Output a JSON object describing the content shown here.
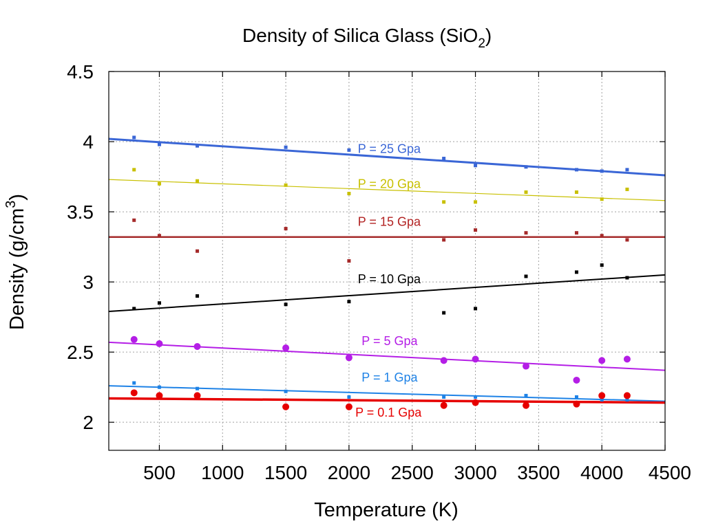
{
  "chart_data": {
    "type": "scatter",
    "title": "Density of Silica Glass (SiO",
    "title_subscript": "2",
    "title_close": ")",
    "xlabel": "Temperature (K)",
    "ylabel": "Density (g/cm",
    "ylabel_superscript": "3",
    "ylabel_close": ")",
    "xlim": [
      100,
      4500
    ],
    "ylim": [
      1.8,
      4.5
    ],
    "xticks": [
      500,
      1000,
      1500,
      2000,
      2500,
      3000,
      3500,
      4000,
      4500
    ],
    "xtick_labels": [
      "500",
      "1000",
      "1500",
      "2000",
      "2500",
      "3000",
      "3500",
      "4000",
      "4500"
    ],
    "yticks": [
      2,
      2.5,
      3,
      3.5,
      4,
      4.5
    ],
    "ytick_labels": [
      "2",
      "2.5",
      "3",
      "3.5",
      "4",
      "4.5"
    ],
    "grid": true,
    "legend": "none",
    "series": [
      {
        "name": "P = 25 Gpa",
        "color": "#3a66d6",
        "marker": "square",
        "x": [
          300,
          500,
          800,
          1500,
          2000,
          2750,
          3000,
          3400,
          3800,
          4000,
          4200
        ],
        "y": [
          4.03,
          3.98,
          3.97,
          3.96,
          3.94,
          3.88,
          3.83,
          3.82,
          3.8,
          3.79,
          3.8
        ],
        "fit": [
          [
            100,
            4.02
          ],
          [
            4500,
            3.76
          ]
        ],
        "fit_width": 3
      },
      {
        "name": "P = 20 Gpa",
        "color": "#c8c000",
        "marker": "square",
        "x": [
          300,
          500,
          800,
          1500,
          2000,
          2750,
          3000,
          3400,
          3800,
          4000,
          4200
        ],
        "y": [
          3.8,
          3.7,
          3.72,
          3.69,
          3.63,
          3.57,
          3.57,
          3.64,
          3.64,
          3.59,
          3.66
        ],
        "fit": [
          [
            100,
            3.73
          ],
          [
            4500,
            3.58
          ]
        ],
        "fit_width": 1.2
      },
      {
        "name": "P = 15 Gpa",
        "color": "#a52a2a",
        "marker": "square",
        "x": [
          300,
          500,
          800,
          1500,
          2000,
          2750,
          3000,
          3400,
          3800,
          4000,
          4200
        ],
        "y": [
          3.44,
          3.33,
          3.22,
          3.38,
          3.15,
          3.3,
          3.37,
          3.35,
          3.35,
          3.33,
          3.3
        ],
        "fit": [
          [
            100,
            3.32
          ],
          [
            4500,
            3.32
          ]
        ],
        "fit_width": 2.5
      },
      {
        "name": "P = 10 Gpa",
        "color": "#000000",
        "marker": "square",
        "x": [
          300,
          500,
          800,
          1500,
          2000,
          2750,
          3000,
          3400,
          3800,
          4000,
          4200
        ],
        "y": [
          2.81,
          2.85,
          2.9,
          2.84,
          2.86,
          2.78,
          2.81,
          3.04,
          3.07,
          3.12,
          3.03
        ],
        "fit": [
          [
            100,
            2.79
          ],
          [
            4500,
            3.05
          ]
        ],
        "fit_width": 2
      },
      {
        "name": "P = 5 Gpa",
        "color": "#b41ee6",
        "marker": "circle",
        "x": [
          300,
          500,
          800,
          1500,
          2000,
          2750,
          3000,
          3400,
          3800,
          4000,
          4200
        ],
        "y": [
          2.59,
          2.56,
          2.54,
          2.53,
          2.46,
          2.44,
          2.45,
          2.4,
          2.3,
          2.44,
          2.45
        ],
        "fit": [
          [
            100,
            2.57
          ],
          [
            4500,
            2.37
          ]
        ],
        "fit_width": 2
      },
      {
        "name": "P = 1 Gpa",
        "color": "#1e82e6",
        "marker": "square",
        "x": [
          300,
          500,
          800,
          1500,
          2000,
          2750,
          3000,
          3400,
          3800,
          4000,
          4200
        ],
        "y": [
          2.28,
          2.25,
          2.24,
          2.22,
          2.18,
          2.18,
          2.18,
          2.19,
          2.18,
          2.16,
          2.16
        ],
        "fit": [
          [
            100,
            2.26
          ],
          [
            4500,
            2.15
          ]
        ],
        "fit_width": 2
      },
      {
        "name": "P = 0.1 Gpa",
        "color": "#e60000",
        "marker": "circle",
        "x": [
          300,
          500,
          800,
          1500,
          2000,
          2750,
          3000,
          3400,
          3800,
          4000,
          4200
        ],
        "y": [
          2.21,
          2.19,
          2.19,
          2.11,
          2.11,
          2.12,
          2.14,
          2.12,
          2.13,
          2.19,
          2.19
        ],
        "fit": [
          [
            100,
            2.17
          ],
          [
            4500,
            2.14
          ]
        ],
        "fit_width": 3.5
      }
    ],
    "annotations": [
      {
        "text": "P = 25 Gpa",
        "x": 2070,
        "y": 3.92,
        "color": "#3a66d6"
      },
      {
        "text": "P = 20 Gpa",
        "x": 2070,
        "y": 3.67,
        "color": "#c8c000"
      },
      {
        "text": "P = 15 Gpa",
        "x": 2070,
        "y": 3.4,
        "color": "#b22222"
      },
      {
        "text": "P = 10 Gpa",
        "x": 2070,
        "y": 2.99,
        "color": "#000000"
      },
      {
        "text": "P = 5 Gpa",
        "x": 2100,
        "y": 2.55,
        "color": "#b41ee6"
      },
      {
        "text": "P = 1 Gpa",
        "x": 2100,
        "y": 2.29,
        "color": "#1e82e6"
      },
      {
        "text": "P = 0.1 Gpa",
        "x": 2050,
        "y": 2.04,
        "color": "#e60000"
      }
    ]
  }
}
